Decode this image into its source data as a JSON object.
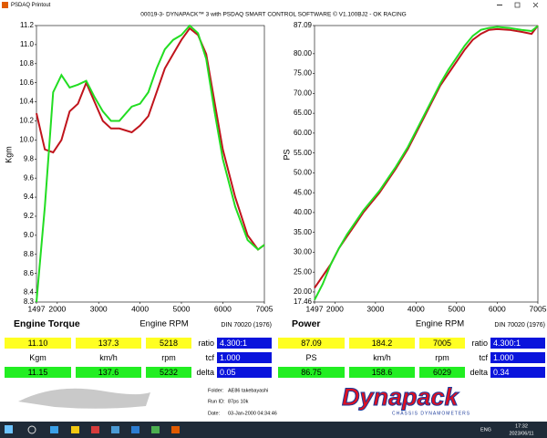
{
  "window": {
    "title": "PSDAQ Printout"
  },
  "header": "00019-3- DYNAPACK™ 3 with PSDAQ SMART CONTROL SOFTWARE © V1.100BJ2 - OK RACING",
  "chart_data": [
    {
      "type": "line",
      "title": "Engine Torque",
      "xlabel": "Engine RPM",
      "ylabel": "Kgm",
      "note": "DIN 70020 (1976)",
      "x": [
        1497,
        1700,
        1900,
        2100,
        2300,
        2500,
        2700,
        2900,
        3100,
        3300,
        3500,
        3800,
        4000,
        4200,
        4400,
        4600,
        4800,
        5000,
        5200,
        5400,
        5600,
        5800,
        6000,
        6300,
        6600,
        6850,
        7005
      ],
      "series": [
        {
          "color": "#c0141c",
          "values": [
            10.28,
            9.9,
            9.87,
            10.0,
            10.3,
            10.38,
            10.6,
            10.4,
            10.2,
            10.12,
            10.12,
            10.08,
            10.15,
            10.25,
            10.5,
            10.75,
            10.9,
            11.05,
            11.17,
            11.1,
            10.9,
            10.4,
            9.9,
            9.4,
            9.0,
            8.85,
            8.9
          ]
        },
        {
          "color": "#22dd22",
          "values": [
            8.3,
            9.3,
            10.5,
            10.68,
            10.55,
            10.58,
            10.62,
            10.45,
            10.3,
            10.2,
            10.2,
            10.35,
            10.38,
            10.5,
            10.75,
            10.95,
            11.05,
            11.1,
            11.2,
            11.12,
            10.85,
            10.3,
            9.8,
            9.3,
            8.95,
            8.85,
            8.9
          ]
        }
      ],
      "xlim": [
        1497,
        7005
      ],
      "xticks": [
        1497,
        2000,
        3000,
        4000,
        5000,
        6000,
        7005
      ],
      "ylim": [
        8.3,
        11.2
      ],
      "yticks": [
        8.3,
        8.4,
        8.6,
        8.8,
        {
          "value": 9,
          "label": "9.0"
        },
        9.2,
        9.4,
        9.6,
        9.8,
        {
          "value": 10,
          "label": "10.0"
        },
        10.2,
        10.4,
        10.6,
        10.8,
        {
          "value": 11,
          "label": "11.0"
        },
        11.2
      ]
    },
    {
      "type": "line",
      "title": "Power",
      "xlabel": "Engine RPM",
      "ylabel": "PS",
      "note": "DIN 70020 (1976)",
      "x": [
        1497,
        1700,
        1900,
        2100,
        2300,
        2500,
        2700,
        2900,
        3100,
        3300,
        3500,
        3800,
        4000,
        4200,
        4400,
        4600,
        4800,
        5000,
        5200,
        5400,
        5600,
        5800,
        6000,
        6300,
        6600,
        6850,
        7005
      ],
      "series": [
        {
          "color": "#c0141c",
          "values": [
            21,
            24,
            27,
            31,
            34,
            37,
            40,
            42.5,
            45,
            48,
            51,
            56,
            60,
            64,
            68,
            72,
            75,
            78,
            81,
            83.5,
            85,
            86,
            86.2,
            86,
            85.5,
            85,
            87.09
          ]
        },
        {
          "color": "#22dd22",
          "values": [
            18,
            22,
            27,
            31,
            34.5,
            37.5,
            40.5,
            43,
            45.5,
            48.5,
            51.5,
            56.5,
            60.5,
            64.5,
            68.5,
            72.5,
            76,
            79,
            82,
            84.5,
            86,
            86.5,
            86.75,
            86.5,
            86,
            85.7,
            87
          ]
        }
      ],
      "xlim": [
        1497,
        7005
      ],
      "xticks": [
        1497,
        2000,
        3000,
        4000,
        5000,
        6000,
        7005
      ],
      "ylim": [
        17.46,
        87.09
      ],
      "yticks": [
        17.46,
        {
          "value": 20,
          "label": "20.00"
        },
        {
          "value": 25,
          "label": "25.00"
        },
        {
          "value": 30,
          "label": "30.00"
        },
        {
          "value": 35,
          "label": "35.00"
        },
        {
          "value": 40,
          "label": "40.00"
        },
        {
          "value": 45,
          "label": "45.00"
        },
        {
          "value": 50,
          "label": "50.00"
        },
        {
          "value": 55,
          "label": "55.00"
        },
        {
          "value": 60,
          "label": "60.00"
        },
        {
          "value": 65,
          "label": "65.00"
        },
        {
          "value": 70,
          "label": "70.00"
        },
        {
          "value": 75,
          "label": "75.00"
        },
        {
          "value": 80,
          "label": "80.00"
        },
        87.09
      ]
    }
  ],
  "readouts": [
    {
      "peak": [
        "11.10",
        "137.3",
        "5218"
      ],
      "units": [
        "Kgm",
        "km/h",
        "rpm"
      ],
      "current": [
        "11.15",
        "137.6",
        "5232"
      ],
      "params": [
        {
          "label": "ratio",
          "value": "4.300:1"
        },
        {
          "label": "tcf",
          "value": "1.000"
        },
        {
          "label": "delta",
          "value": "0.05"
        }
      ]
    },
    {
      "peak": [
        "87.09",
        "184.2",
        "7005"
      ],
      "units": [
        "PS",
        "km/h",
        "rpm"
      ],
      "current": [
        "86.75",
        "158.6",
        "6029"
      ],
      "params": [
        {
          "label": "ratio",
          "value": "4.300:1"
        },
        {
          "label": "tcf",
          "value": "1.000"
        },
        {
          "label": "delta",
          "value": "0.34"
        }
      ]
    }
  ],
  "footer": {
    "folder_label": "Folder:",
    "folder": "AE86 takebayashi",
    "run_label": "Run ID:",
    "run": "87ps 10k",
    "date_label": "Date:",
    "date": "03-Jan-2000 04:34:46",
    "brand": "Dynapack",
    "brand_sub": "CHASSIS DYNAMOMETERS"
  },
  "taskbar": {
    "lang": "ENG",
    "time": "17:32",
    "date": "2023/06/11"
  }
}
